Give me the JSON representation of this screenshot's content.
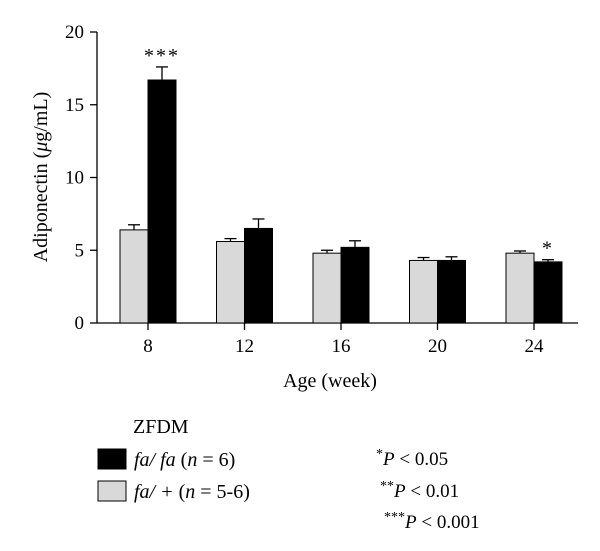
{
  "chart_data": {
    "type": "bar",
    "xlabel": "Age (week)",
    "ylabel": "Adiponectin (μg/mL)",
    "ylabel_parts": [
      "Adiponectin (",
      "μ",
      "g/mL)"
    ],
    "ylim": [
      0,
      20
    ],
    "yticks": [
      "0",
      "5",
      "10",
      "15",
      "20"
    ],
    "categories": [
      "8",
      "12",
      "16",
      "20",
      "24"
    ],
    "series": [
      {
        "name": "fa/ + (n = 5-6)",
        "color": "#d9d9d9",
        "values": [
          6.4,
          5.6,
          4.8,
          4.3,
          4.8
        ],
        "errors": [
          0.35,
          0.2,
          0.2,
          0.2,
          0.15
        ],
        "annotations": [
          "",
          "",
          "",
          "",
          ""
        ]
      },
      {
        "name": "fa/ fa (n = 6)",
        "color": "#000000",
        "values": [
          16.7,
          6.5,
          5.2,
          4.3,
          4.2
        ],
        "errors": [
          0.9,
          0.65,
          0.45,
          0.25,
          0.15
        ],
        "annotations": [
          "***",
          "",
          "",
          "",
          "*"
        ]
      }
    ],
    "grid": false,
    "legend_position": "bottom-left"
  },
  "legend": {
    "title": "ZFDM",
    "items": [
      {
        "genotype": "fa/ fa",
        "paren_open": " (",
        "n_symbol": "n",
        "n_value": " = 6)",
        "color": "#000000"
      },
      {
        "genotype": "fa/ +",
        "paren_open": " (",
        "n_symbol": "n",
        "n_value": " = 5-6)",
        "color": "#d9d9d9"
      }
    ]
  },
  "significance": [
    {
      "stars": "*",
      "p": "P",
      "rest": " < 0.05"
    },
    {
      "stars": "**",
      "p": "P",
      "rest": " < 0.01"
    },
    {
      "stars": "***",
      "p": "P",
      "rest": " < 0.001"
    }
  ]
}
